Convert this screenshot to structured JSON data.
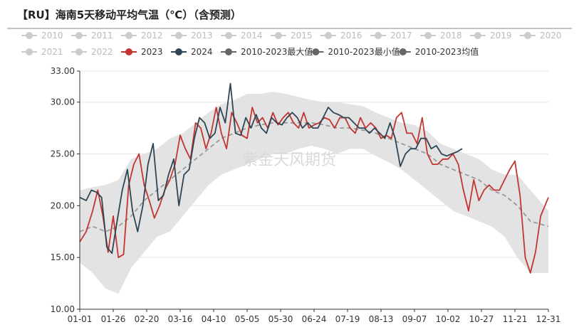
{
  "title": "【RU】海南5天移动平均气温（℃）（含预测）",
  "watermark": "紫金天风期货",
  "chart_data": {
    "type": "line",
    "title": "【RU】海南5天移动平均气温（℃）（含预测）",
    "xlabel": "",
    "ylabel": "",
    "ylim": [
      10,
      33
    ],
    "x_ticks": [
      "01-01",
      "01-26",
      "02-20",
      "03-16",
      "04-10",
      "05-05",
      "05-30",
      "06-24",
      "07-19",
      "08-13",
      "09-07",
      "10-02",
      "10-27",
      "11-21",
      "12-31"
    ],
    "y_ticks": [
      "10.00",
      "15.00",
      "20.00",
      "25.00",
      "30.00",
      "33.00"
    ],
    "grid": "horizontal",
    "legend": "top",
    "legend_items": [
      {
        "name": "2010",
        "color": "#cccccc",
        "active": false
      },
      {
        "name": "2011",
        "color": "#cccccc",
        "active": false
      },
      {
        "name": "2012",
        "color": "#cccccc",
        "active": false
      },
      {
        "name": "2013",
        "color": "#cccccc",
        "active": false
      },
      {
        "name": "2014",
        "color": "#cccccc",
        "active": false
      },
      {
        "name": "2015",
        "color": "#cccccc",
        "active": false
      },
      {
        "name": "2016",
        "color": "#cccccc",
        "active": false
      },
      {
        "name": "2017",
        "color": "#cccccc",
        "active": false
      },
      {
        "name": "2018",
        "color": "#cccccc",
        "active": false
      },
      {
        "name": "2019",
        "color": "#cccccc",
        "active": false
      },
      {
        "name": "2020",
        "color": "#cccccc",
        "active": false
      },
      {
        "name": "2021",
        "color": "#cccccc",
        "active": false
      },
      {
        "name": "2022",
        "color": "#cccccc",
        "active": false
      },
      {
        "name": "2023",
        "color": "#c23531",
        "active": true
      },
      {
        "name": "2024",
        "color": "#2f4554",
        "active": true
      },
      {
        "name": "2010-2023最大值",
        "color": "#666666",
        "active": true
      },
      {
        "name": "2010-2023最小值",
        "color": "#666666",
        "active": true
      },
      {
        "name": "2010-2023均值",
        "color": "#666666",
        "active": true
      }
    ],
    "band_color": "#e3e3e3",
    "series": [
      {
        "name": "2010-2023最大值",
        "role": "max",
        "x": [
          0,
          10,
          20,
          30,
          40,
          50,
          60,
          70,
          80,
          90,
          100,
          110,
          120,
          130,
          140,
          150,
          160,
          170,
          180,
          190,
          200,
          210,
          220,
          230,
          240,
          250,
          260,
          270,
          280,
          290,
          300,
          310,
          320,
          330,
          340,
          350,
          364
        ],
        "values": [
          21.5,
          21.8,
          22.0,
          22.5,
          24.5,
          25.0,
          25.5,
          26.5,
          27.0,
          28.0,
          29.0,
          29.8,
          30.2,
          30.8,
          30.8,
          31.0,
          30.8,
          30.5,
          30.2,
          30.0,
          30.0,
          29.8,
          29.6,
          29.0,
          28.5,
          28.0,
          27.8,
          27.2,
          26.0,
          25.5,
          25.0,
          24.5,
          23.5,
          23.0,
          23.0,
          21.5,
          19.5
        ]
      },
      {
        "name": "2010-2023最小值",
        "role": "min",
        "x": [
          0,
          10,
          20,
          30,
          40,
          50,
          60,
          70,
          80,
          90,
          100,
          110,
          120,
          130,
          140,
          150,
          160,
          170,
          180,
          190,
          200,
          210,
          220,
          230,
          240,
          250,
          260,
          270,
          280,
          290,
          300,
          310,
          320,
          330,
          340,
          350,
          364
        ],
        "values": [
          14.5,
          13.5,
          12.0,
          11.5,
          14.0,
          15.5,
          17.0,
          17.5,
          19.0,
          20.5,
          22.0,
          23.0,
          23.5,
          24.0,
          24.5,
          25.0,
          25.0,
          25.5,
          25.8,
          25.5,
          25.0,
          25.5,
          25.5,
          24.8,
          24.2,
          23.5,
          22.5,
          21.5,
          20.5,
          19.5,
          19.0,
          18.5,
          18.0,
          17.0,
          15.0,
          13.5,
          13.5
        ]
      },
      {
        "name": "2010-2023均值",
        "role": "mean",
        "color": "#999999",
        "dashed": true,
        "x": [
          0,
          10,
          20,
          30,
          40,
          50,
          60,
          70,
          80,
          90,
          100,
          110,
          120,
          130,
          140,
          150,
          160,
          170,
          180,
          190,
          200,
          210,
          220,
          230,
          240,
          250,
          260,
          270,
          280,
          290,
          300,
          310,
          320,
          330,
          340,
          350,
          364
        ],
        "values": [
          17.5,
          18.0,
          17.5,
          18.0,
          19.0,
          20.5,
          21.5,
          22.5,
          23.5,
          24.5,
          25.5,
          26.5,
          27.0,
          27.5,
          27.8,
          28.0,
          28.0,
          28.0,
          28.0,
          27.8,
          27.5,
          27.5,
          27.3,
          27.0,
          26.5,
          26.0,
          25.5,
          25.0,
          24.0,
          23.5,
          23.0,
          22.5,
          21.5,
          21.0,
          20.0,
          18.5,
          18.0
        ]
      },
      {
        "name": "2023",
        "color": "#c23531",
        "x": [
          0,
          5,
          10,
          14,
          18,
          22,
          26,
          30,
          34,
          38,
          42,
          46,
          50,
          54,
          58,
          62,
          66,
          70,
          74,
          78,
          82,
          86,
          90,
          94,
          98,
          102,
          106,
          110,
          114,
          118,
          122,
          126,
          130,
          134,
          138,
          142,
          146,
          150,
          154,
          158,
          162,
          166,
          170,
          174,
          178,
          182,
          186,
          190,
          194,
          198,
          202,
          206,
          210,
          214,
          218,
          222,
          226,
          230,
          234,
          238,
          242,
          246,
          250,
          254,
          258,
          262,
          266,
          270,
          274,
          278,
          282,
          286,
          290,
          294,
          298,
          302,
          306,
          310,
          314,
          318,
          322,
          326,
          330,
          334,
          338,
          342,
          346,
          350,
          354,
          358,
          364
        ],
        "values": [
          16.5,
          17.5,
          19.5,
          21.5,
          19.0,
          15.5,
          19.0,
          15.0,
          15.3,
          22.0,
          24.0,
          25.0,
          22.0,
          20.5,
          18.8,
          20.0,
          21.5,
          22.5,
          24.0,
          26.8,
          25.5,
          24.5,
          28.0,
          27.5,
          25.5,
          27.0,
          29.5,
          27.0,
          25.5,
          29.0,
          28.0,
          26.8,
          26.5,
          29.5,
          28.0,
          28.5,
          27.5,
          29.0,
          27.8,
          28.5,
          29.0,
          28.0,
          27.5,
          29.0,
          27.5,
          27.8,
          28.0,
          28.5,
          28.3,
          27.5,
          28.5,
          28.5,
          27.5,
          27.0,
          28.5,
          27.5,
          28.0,
          27.5,
          26.5,
          26.8,
          26.5,
          28.5,
          29.0,
          27.0,
          27.0,
          26.0,
          28.5,
          25.0,
          24.0,
          24.0,
          24.5,
          24.5,
          25.0,
          24.0,
          21.5,
          19.5,
          22.5,
          20.5,
          21.5,
          22.0,
          21.5,
          21.5,
          22.5,
          23.5,
          24.3,
          21.0,
          15.0,
          13.5,
          15.5,
          19.0,
          20.8
        ]
      },
      {
        "name": "2024",
        "color": "#2f4554",
        "x": [
          0,
          5,
          9,
          13,
          17,
          21,
          25,
          29,
          33,
          37,
          41,
          45,
          49,
          53,
          57,
          61,
          65,
          69,
          73,
          77,
          81,
          85,
          89,
          93,
          97,
          101,
          105,
          109,
          113,
          117,
          121,
          125,
          129,
          133,
          137,
          141,
          145,
          149,
          153,
          157,
          161,
          165,
          169,
          173,
          177,
          181,
          185,
          189,
          193,
          197,
          201,
          205,
          209,
          213,
          217,
          221,
          225,
          229,
          233,
          237,
          241,
          245,
          249,
          253,
          257,
          261,
          265,
          269,
          273,
          277,
          281,
          285,
          289,
          293,
          297
        ],
        "values": [
          20.8,
          20.5,
          21.5,
          21.3,
          20.8,
          16.0,
          15.4,
          18.5,
          21.5,
          23.5,
          19.5,
          17.5,
          20.0,
          24.0,
          26.0,
          20.5,
          21.0,
          23.0,
          24.5,
          20.0,
          23.0,
          23.5,
          26.5,
          28.5,
          28.0,
          26.5,
          27.0,
          29.5,
          28.0,
          31.8,
          27.0,
          26.8,
          28.5,
          27.5,
          28.8,
          27.5,
          27.0,
          28.5,
          28.0,
          27.8,
          28.5,
          29.0,
          28.5,
          27.5,
          28.0,
          27.5,
          27.5,
          28.5,
          29.5,
          29.0,
          28.8,
          28.5,
          28.5,
          28.0,
          27.5,
          27.5,
          27.0,
          27.5,
          27.0,
          26.5,
          28.0,
          26.5,
          23.8,
          25.0,
          25.5,
          25.5,
          26.5,
          26.5,
          25.5,
          25.8,
          25.0,
          24.8,
          25.0,
          25.2,
          25.5
        ]
      }
    ]
  }
}
